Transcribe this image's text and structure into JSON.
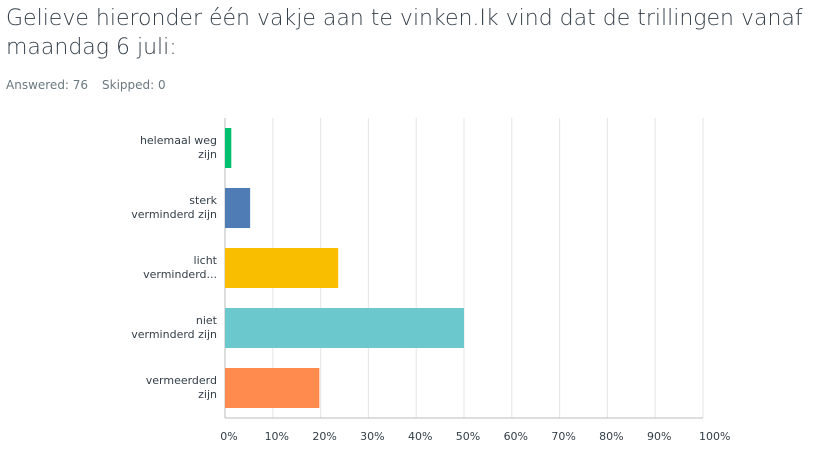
{
  "chart_data": {
    "type": "bar",
    "orientation": "horizontal",
    "title": "Gelieve hieronder één vakje aan te vinken.Ik vind dat de trillingen vanaf maandag 6 juli:",
    "answered": "Answered: 76",
    "skipped": "Skipped: 0",
    "categories": [
      "helemaal weg\nzijn",
      "sterk\nverminderd zijn",
      "licht\nverminderd...",
      "niet\nverminderd zijn",
      "vermeerderd\nzijn"
    ],
    "values": [
      1.32,
      5.26,
      23.68,
      50,
      19.74
    ],
    "colors": [
      "#00bf6f",
      "#507cb6",
      "#f9be00",
      "#6bc8cd",
      "#ff8b4f"
    ],
    "xlim": [
      0,
      100
    ],
    "xticks": [
      {
        "value": 0,
        "label": "0%"
      },
      {
        "value": 10,
        "label": "10%"
      },
      {
        "value": 20,
        "label": "20%"
      },
      {
        "value": 30,
        "label": "30%"
      },
      {
        "value": 40,
        "label": "40%"
      },
      {
        "value": 50,
        "label": "50%"
      },
      {
        "value": 60,
        "label": "60%"
      },
      {
        "value": 70,
        "label": "70%"
      },
      {
        "value": 80,
        "label": "80%"
      },
      {
        "value": 90,
        "label": "90%"
      },
      {
        "value": 100,
        "label": "100%"
      }
    ],
    "grid": true
  }
}
